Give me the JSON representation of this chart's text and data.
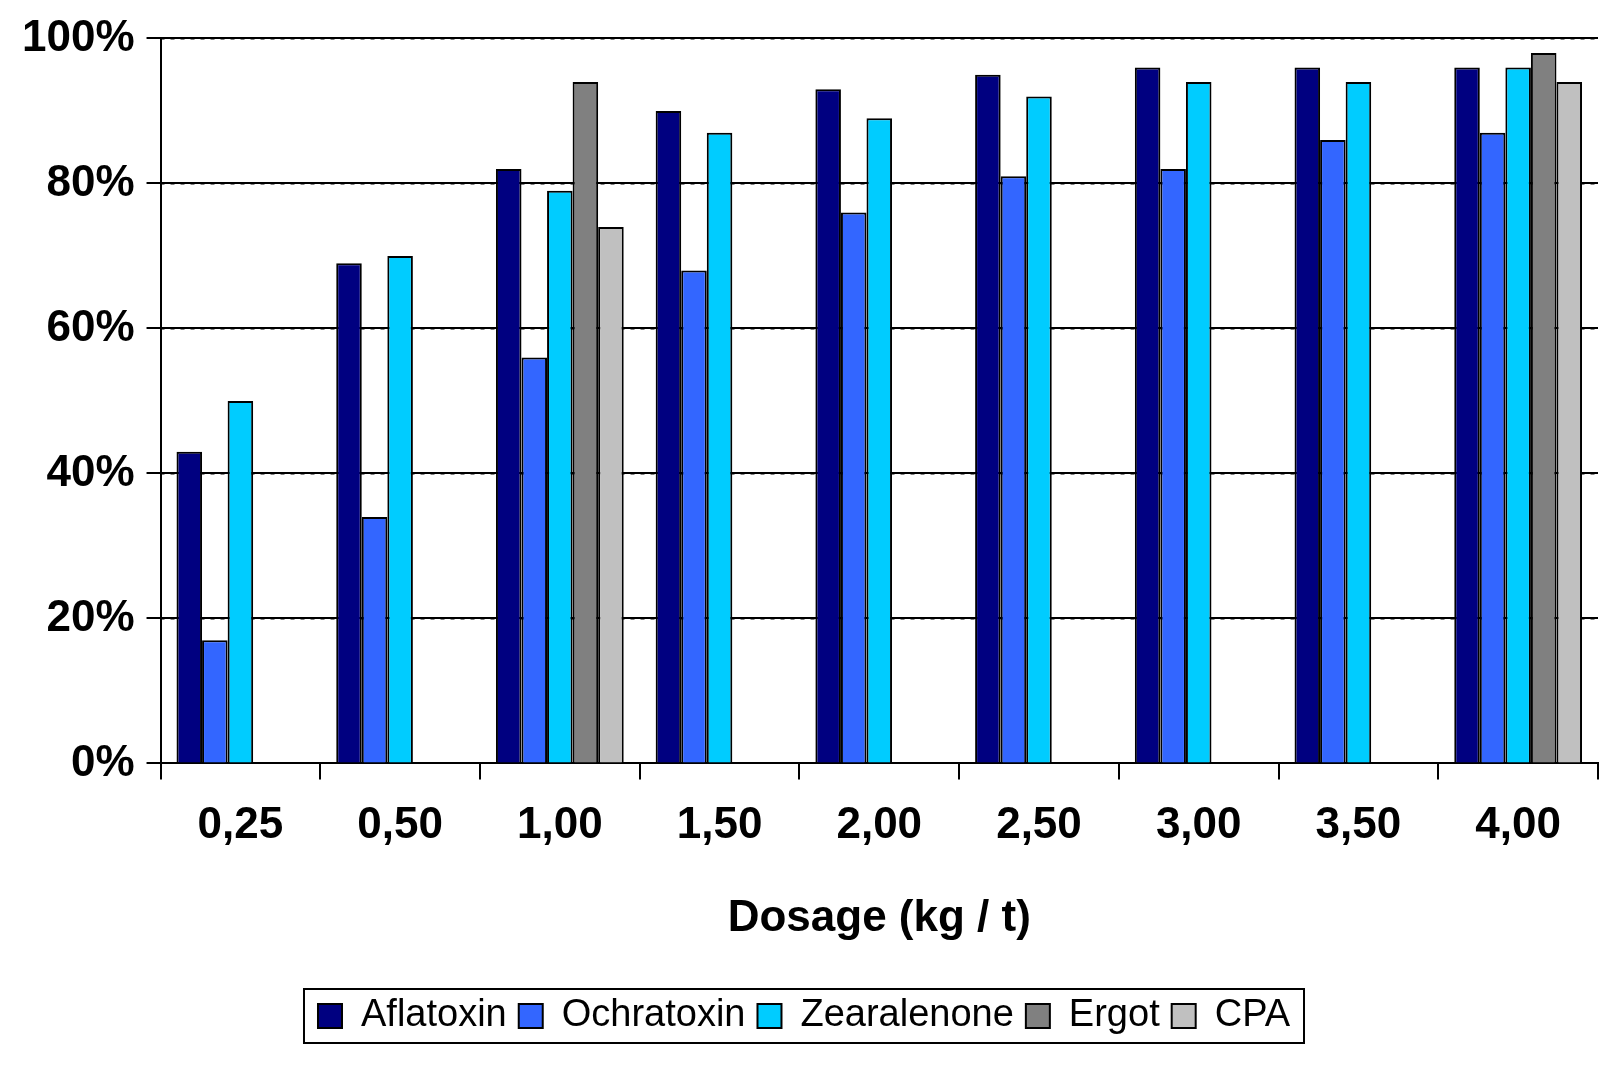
{
  "chart_data": {
    "type": "bar",
    "xlabel": "Dosage (kg / t)",
    "categories": [
      "0,25",
      "0,50",
      "1,00",
      "1,50",
      "2,00",
      "2,50",
      "3,00",
      "3,50",
      "4,00"
    ],
    "series": [
      {
        "name": "Aflatoxin",
        "color": "#000080",
        "values": [
          43,
          69,
          82,
          90,
          93,
          95,
          96,
          96,
          96
        ]
      },
      {
        "name": "Ochratoxin",
        "color": "#3366ff",
        "values": [
          17,
          34,
          56,
          68,
          76,
          81,
          82,
          86,
          87
        ]
      },
      {
        "name": "Zearalenone",
        "color": "#00ccff",
        "values": [
          50,
          70,
          79,
          87,
          89,
          92,
          94,
          94,
          96
        ]
      },
      {
        "name": "Ergot",
        "color": "#808080",
        "values": [
          null,
          null,
          94,
          null,
          null,
          null,
          null,
          null,
          98
        ]
      },
      {
        "name": "CPA",
        "color": "#c0c0c0",
        "values": [
          null,
          null,
          74,
          null,
          null,
          null,
          null,
          null,
          94
        ]
      }
    ],
    "ylim": [
      0,
      100
    ],
    "yticks": [
      {
        "value": 0,
        "label": "0%"
      },
      {
        "value": 20,
        "label": "20%"
      },
      {
        "value": 40,
        "label": "40%"
      },
      {
        "value": 60,
        "label": "60%"
      },
      {
        "value": 80,
        "label": "80%"
      },
      {
        "value": 100,
        "label": "100%"
      }
    ],
    "grid": "y",
    "legend": "bottom"
  }
}
